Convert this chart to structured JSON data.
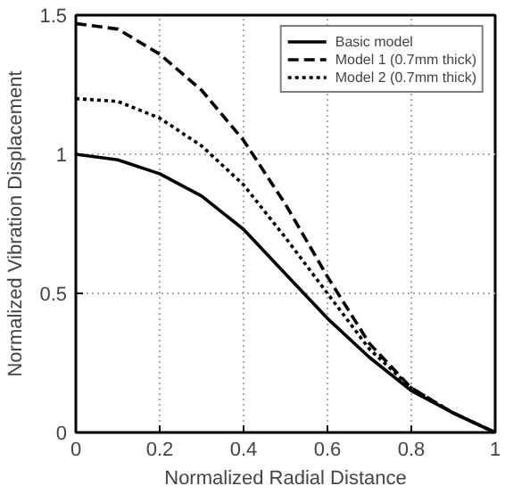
{
  "chart_data": {
    "type": "line",
    "xlabel": "Normalized Radial Distance",
    "ylabel": "Normalized Vibration Displacement",
    "x": [
      0,
      0.1,
      0.2,
      0.3,
      0.4,
      0.5,
      0.6,
      0.7,
      0.8,
      0.9,
      1
    ],
    "xlim": [
      0,
      1
    ],
    "ylim": [
      0,
      1.5
    ],
    "xticks": [
      0,
      0.2,
      0.4,
      0.6,
      0.8,
      1
    ],
    "yticks": [
      0,
      0.5,
      1,
      1.5
    ],
    "grid": true,
    "legend": "top right",
    "series": [
      {
        "name": "Basic model",
        "color": "#000000",
        "line_style": "solid",
        "values": [
          1.0,
          0.98,
          0.93,
          0.85,
          0.73,
          0.57,
          0.41,
          0.27,
          0.15,
          0.07,
          0
        ]
      },
      {
        "name": "Model 1 (0.7mm thick)",
        "color": "#000000",
        "line_style": "dashed",
        "values": [
          1.47,
          1.45,
          1.36,
          1.23,
          1.05,
          0.82,
          0.56,
          0.32,
          0.16,
          0.07,
          0
        ]
      },
      {
        "name": "Model 2 (0.7mm thick)",
        "color": "#000000",
        "line_style": "dotted",
        "values": [
          1.2,
          1.19,
          1.13,
          1.03,
          0.89,
          0.7,
          0.5,
          0.3,
          0.16,
          0.07,
          0
        ]
      }
    ]
  }
}
